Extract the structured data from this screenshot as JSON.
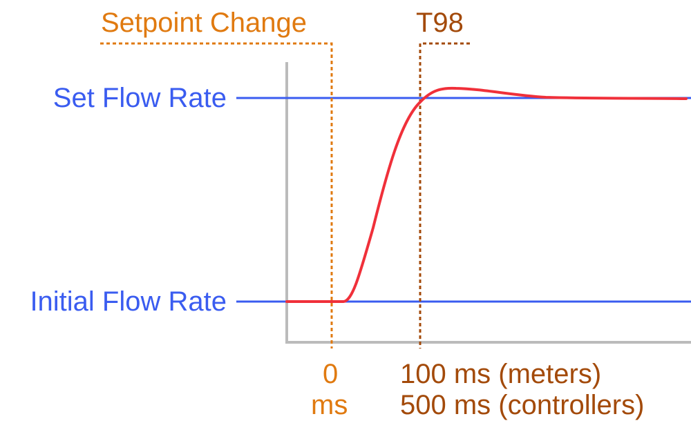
{
  "labels": {
    "setpoint_change": "Setpoint Change",
    "t98": "T98",
    "set_flow_rate": "Set Flow Rate",
    "initial_flow_rate": "Initial Flow Rate",
    "zero_line1": "0",
    "zero_line2": "ms",
    "t98_time_meters": "100 ms (meters)",
    "t98_time_controllers": "500 ms (controllers)"
  },
  "colors": {
    "flow_lines": "#3a5cf0",
    "response_curve": "#f0303a",
    "setpoint_marker": "#e07a10",
    "t98_marker": "#a34a0a",
    "axes": "#bbbbbb"
  }
}
